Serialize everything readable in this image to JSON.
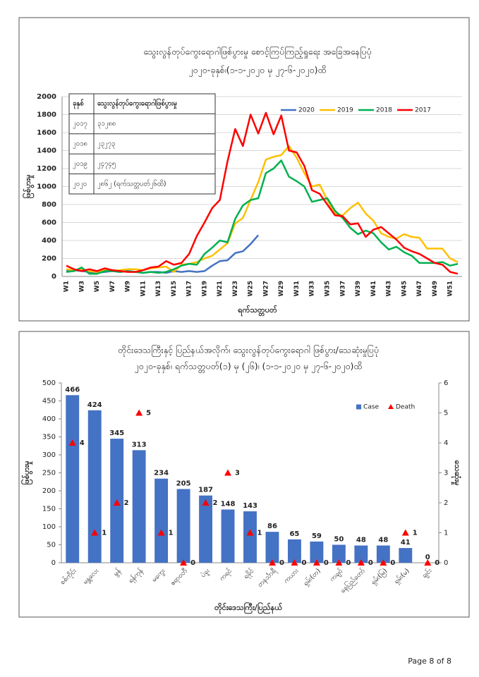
{
  "chart_data": [
    {
      "type": "line",
      "title": "သွေးလွန်တုပ်ကွေးရောဂါဖြစ်ပွားမှု စောင့်ကြပ်ကြည့်ရှုရေး အခြေအနေပြပုံ",
      "subtitle": "၂၀၂၀-ခုနှစ်၊(၁-၁-၂၀၂၀ မှ ၂၇-၆-၂၀၂၀)ထိ",
      "ylabel": "ဖြစ်ပွားမှု",
      "xlabel": "ရက်သတ္တပတ်",
      "categories": [
        "W1",
        null,
        "W3",
        null,
        "W5",
        null,
        "W7",
        null,
        "W9",
        null,
        "W11",
        null,
        "W13",
        null,
        "W15",
        null,
        "W17",
        null,
        "W19",
        null,
        "W21",
        null,
        "W23",
        null,
        "W25",
        null,
        "W27",
        null,
        "W29",
        null,
        "W31",
        null,
        "W33",
        null,
        "W35",
        null,
        "W37",
        null,
        "W39",
        null,
        "W41",
        null,
        "W43",
        null,
        "W45",
        null,
        "W47",
        null,
        "W49",
        null,
        "W51",
        null
      ],
      "ylim": [
        0,
        2000
      ],
      "yticks": [
        0,
        200,
        400,
        600,
        800,
        1000,
        1200,
        1400,
        1600,
        1800,
        2000
      ],
      "grid": true,
      "legend": "top-right",
      "series": [
        {
          "name": "2020",
          "color": "#4472c4",
          "values": [
            60,
            70,
            60,
            50,
            40,
            50,
            60,
            50,
            60,
            50,
            40,
            50,
            50,
            40,
            60,
            50,
            60,
            50,
            60,
            120,
            170,
            180,
            260,
            280,
            360,
            460,
            null,
            null,
            null,
            null,
            null,
            null,
            null,
            null,
            null,
            null,
            null,
            null,
            null,
            null,
            null,
            null,
            null,
            null,
            null,
            null,
            null,
            null,
            null,
            null,
            null,
            null
          ]
        },
        {
          "name": "2019",
          "color": "#ffc000",
          "values": [
            80,
            70,
            80,
            60,
            50,
            70,
            60,
            70,
            80,
            80,
            70,
            90,
            100,
            110,
            50,
            130,
            140,
            160,
            200,
            230,
            300,
            370,
            590,
            650,
            850,
            1050,
            1300,
            1330,
            1350,
            1450,
            1320,
            1150,
            1000,
            1020,
            850,
            700,
            680,
            760,
            820,
            700,
            620,
            480,
            440,
            420,
            470,
            440,
            430,
            310,
            310,
            310,
            200,
            160
          ]
        },
        {
          "name": "2018",
          "color": "#00b050",
          "values": [
            50,
            60,
            100,
            30,
            30,
            60,
            60,
            50,
            60,
            50,
            40,
            50,
            40,
            50,
            80,
            120,
            140,
            130,
            250,
            320,
            400,
            380,
            640,
            790,
            850,
            870,
            1150,
            1200,
            1290,
            1110,
            1060,
            1000,
            830,
            850,
            870,
            730,
            650,
            540,
            470,
            510,
            480,
            380,
            300,
            330,
            270,
            230,
            150,
            150,
            150,
            160,
            120,
            140
          ]
        },
        {
          "name": "2017",
          "color": "#ff0000",
          "values": [
            120,
            80,
            60,
            80,
            60,
            90,
            70,
            60,
            50,
            50,
            70,
            100,
            110,
            170,
            130,
            150,
            250,
            450,
            600,
            760,
            850,
            1280,
            1640,
            1450,
            1800,
            1590,
            1820,
            1580,
            1790,
            1400,
            1380,
            1230,
            960,
            920,
            800,
            680,
            670,
            580,
            590,
            440,
            520,
            550,
            480,
            410,
            320,
            280,
            250,
            200,
            150,
            130,
            50,
            30
          ]
        }
      ],
      "table": {
        "header": [
          "ခုနှစ်",
          "သွေးလွန်တုပ်ကွေးရောဂါဖြစ်ပွားမှု"
        ],
        "rows": [
          [
            "၂၀၁၇",
            "၃၁၂၈၈"
          ],
          [
            "၂၀၁၈",
            "၂၃၂၇၃"
          ],
          [
            "၂၀၁၉",
            "၂၄၇၄၅"
          ],
          [
            "၂၀၂၀",
            "၂၈၆၂ (ရက်သတ္တပတ်၂၆ထိ)"
          ]
        ]
      }
    },
    {
      "type": "bar",
      "title": "တိုင်းဒေသကြီးနှင့် ပြည်နယ်အလိုက်၊ သွေးလွန်တုပ်ကွေးရောဂါ ဖြစ်ပွား/သေဆုံးမှုပြပုံ",
      "subtitle": "၂၀၂၀-ခုနှစ်၊ ရက်သတ္တပတ်(၁) မှ (၂၆)၊ (၁-၁-၂၀၂၀ မှ ၂၇-၆-၂၀၂၀)ထိ",
      "ylabel": "ဖြစ်ပွားမှု",
      "y2label": "သေဆုံးမှု",
      "xlabel": "တိုင်းဒေသကြီး/ပြည်နယ်",
      "categories": [
        "စစ်ကိုင်း",
        "မန္တလေး",
        "မွန်",
        "ရန်ကုန်",
        "မကွေး",
        "ဧရာဝတီ",
        "ပဲခူး",
        "ကရင်",
        "ရခိုင်",
        "တနင်္သာရီ",
        "ကယား",
        "ရှမ်း(တ)",
        "ကချင်",
        "နေပြည်တော်",
        "ရှမ်း(မြ)",
        "ရှမ်း(မ)",
        "ချင်း"
      ],
      "ylim": [
        0,
        500
      ],
      "yticks": [
        0,
        50,
        100,
        150,
        200,
        250,
        300,
        350,
        400,
        450,
        500
      ],
      "y2lim": [
        0,
        6
      ],
      "y2ticks": [
        0,
        1,
        2,
        3,
        4,
        5,
        6
      ],
      "legend": "top-right",
      "series": [
        {
          "name": "Case",
          "color": "#4472c4",
          "values": [
            466,
            424,
            345,
            313,
            234,
            205,
            187,
            148,
            143,
            86,
            65,
            59,
            50,
            48,
            48,
            41,
            0
          ]
        },
        {
          "name": "Death",
          "color": "#ff0000",
          "axis": "y2",
          "marker": "triangle",
          "values": [
            4,
            1,
            2,
            5,
            1,
            0,
            2,
            3,
            1,
            0,
            0,
            0,
            0,
            0,
            0,
            1,
            0
          ]
        }
      ]
    }
  ],
  "page_footer": "Page 8 of 8"
}
